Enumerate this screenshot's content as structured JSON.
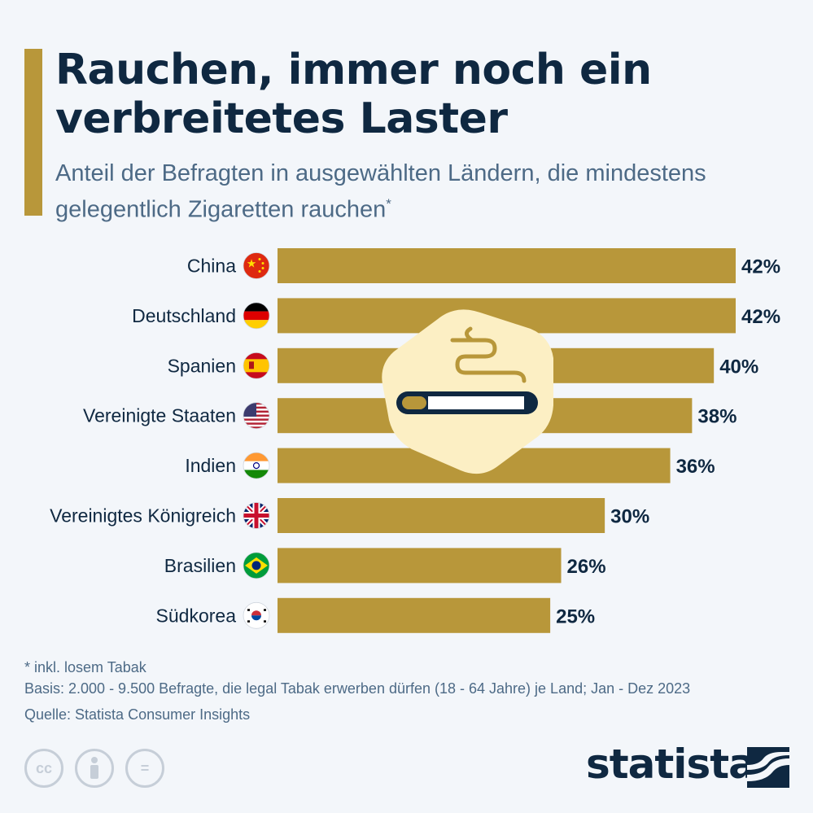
{
  "title": "Rauchen, immer noch ein verbreitetes Laster",
  "subtitle": "Anteil der Befragten in ausgewählten Ländern, die mindestens gelegentlich Zigaretten rauchen",
  "subtitle_mark": "*",
  "colors": {
    "bar": "#b8973a",
    "text_dark": "#0f2841",
    "text_muted": "#4d6a86",
    "background": "#f3f6fa",
    "illustration_bg": "#fcefc4"
  },
  "chart_data": {
    "type": "bar",
    "orientation": "horizontal",
    "categories": [
      "China",
      "Deutschland",
      "Spanien",
      "Vereinigte Staaten",
      "Indien",
      "Vereinigtes Königreich",
      "Brasilien",
      "Südkorea"
    ],
    "values": [
      42,
      42,
      40,
      38,
      36,
      30,
      26,
      25
    ],
    "value_labels": [
      "42%",
      "42%",
      "40%",
      "38%",
      "36%",
      "30%",
      "26%",
      "25%"
    ],
    "unit": "%",
    "xlim": [
      0,
      42
    ],
    "grid": false,
    "legend": false
  },
  "flags": [
    "china-flag-icon",
    "germany-flag-icon",
    "spain-flag-icon",
    "usa-flag-icon",
    "india-flag-icon",
    "uk-flag-icon",
    "brazil-flag-icon",
    "south-korea-flag-icon"
  ],
  "illustration_icon": "cigarette-smoke-icon",
  "footnotes": {
    "note": "* inkl. losem Tabak",
    "basis": "Basis: 2.000 - 9.500 Befragte, die legal Tabak erwerben dürfen (18 - 64 Jahre) je Land; Jan - Dez 2023",
    "source": "Quelle: Statista Consumer Insights"
  },
  "license_icons": [
    {
      "name": "cc-icon",
      "glyph": "cc"
    },
    {
      "name": "attribution-icon",
      "glyph": ""
    },
    {
      "name": "no-derivatives-icon",
      "glyph": "="
    }
  ],
  "brand": "statista"
}
